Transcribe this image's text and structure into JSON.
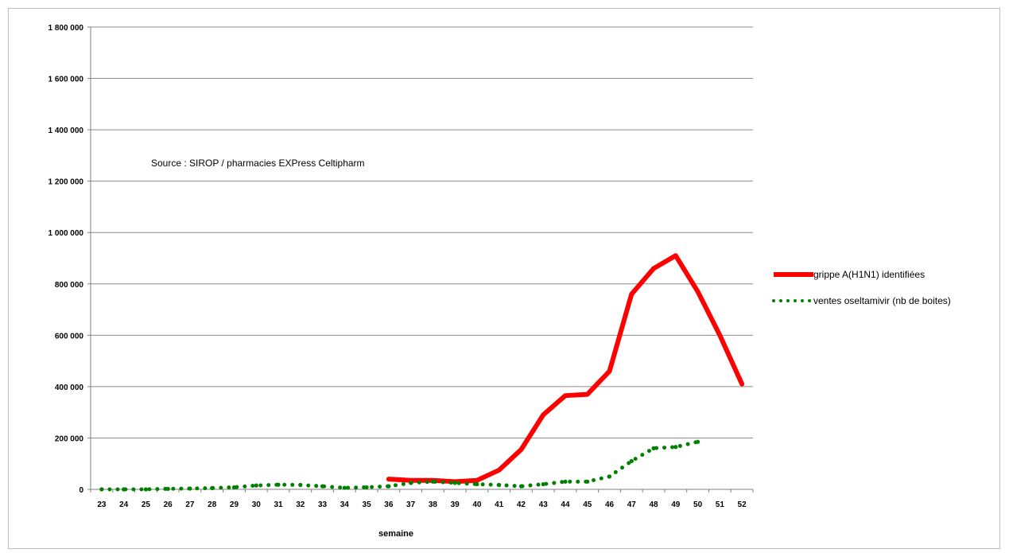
{
  "chart_data": {
    "type": "line",
    "title": "",
    "xlabel": "semaine",
    "ylabel": "",
    "annotation": "Source :  SIROP / pharmacies EXPress Celtipharm",
    "categories": [
      23,
      24,
      25,
      26,
      27,
      28,
      29,
      30,
      31,
      32,
      33,
      34,
      35,
      36,
      37,
      38,
      39,
      40,
      41,
      42,
      43,
      44,
      45,
      46,
      47,
      48,
      49,
      50,
      51,
      52
    ],
    "ylim": [
      0,
      1800000
    ],
    "yticks": [
      {
        "value": 0,
        "label": "0"
      },
      {
        "value": 200000,
        "label": "200 000"
      },
      {
        "value": 400000,
        "label": "400 000"
      },
      {
        "value": 600000,
        "label": "600 000"
      },
      {
        "value": 800000,
        "label": "800 000"
      },
      {
        "value": 1000000,
        "label": "1 000 000"
      },
      {
        "value": 1200000,
        "label": "1 200 000"
      },
      {
        "value": 1400000,
        "label": "1 400 000"
      },
      {
        "value": 1600000,
        "label": "1 600 000"
      },
      {
        "value": 1800000,
        "label": "1 800 000"
      }
    ],
    "grid": "horizontal",
    "legend_position": "right",
    "series": [
      {
        "name": "grippe A(H1N1) identifiées",
        "color": "#ff0000",
        "style": "solid",
        "x": [
          36,
          37,
          38,
          39,
          40,
          41,
          42,
          43,
          44,
          45,
          46,
          47,
          48,
          49,
          50,
          51,
          52
        ],
        "values": [
          40000,
          35000,
          35000,
          30000,
          35000,
          75000,
          155000,
          290000,
          365000,
          370000,
          460000,
          760000,
          860000,
          910000,
          770000,
          600000,
          410000
        ]
      },
      {
        "name": "ventes oseltamivir (nb de boites)",
        "color": "#008000",
        "style": "dotted",
        "x": [
          23,
          24,
          25,
          26,
          27,
          28,
          29,
          30,
          31,
          32,
          33,
          34,
          35,
          36,
          37,
          38,
          39,
          40,
          41,
          42,
          43,
          44,
          45,
          46,
          47,
          48,
          49,
          50
        ],
        "values": [
          0,
          0,
          0,
          2000,
          3000,
          5000,
          8000,
          15000,
          18000,
          17000,
          12000,
          6000,
          8000,
          12000,
          25000,
          30000,
          25000,
          20000,
          17000,
          12000,
          20000,
          30000,
          30000,
          50000,
          110000,
          160000,
          165000,
          185000
        ]
      }
    ]
  }
}
